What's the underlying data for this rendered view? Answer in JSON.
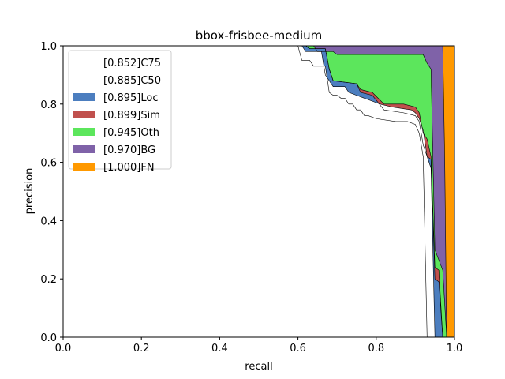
{
  "chart_data": {
    "type": "area",
    "title": "bbox-frisbee-medium",
    "xlabel": "recall",
    "ylabel": "precision",
    "xlim": [
      0.0,
      1.0
    ],
    "ylim": [
      0.0,
      1.0
    ],
    "xticks": [
      "0.0",
      "0.2",
      "0.4",
      "0.6",
      "0.8",
      "1.0"
    ],
    "yticks": [
      "0.0",
      "0.2",
      "0.4",
      "0.6",
      "0.8",
      "1.0"
    ],
    "grid": false,
    "legend_position": "top-left",
    "series": [
      {
        "name": "[0.852]C75",
        "color": "#ffffff",
        "points": [
          [
            0.0,
            1.0
          ],
          [
            0.6,
            1.0
          ],
          [
            0.61,
            0.95
          ],
          [
            0.63,
            0.95
          ],
          [
            0.64,
            0.93
          ],
          [
            0.67,
            0.93
          ],
          [
            0.68,
            0.84
          ],
          [
            0.69,
            0.83
          ],
          [
            0.7,
            0.83
          ],
          [
            0.71,
            0.82
          ],
          [
            0.72,
            0.82
          ],
          [
            0.73,
            0.8
          ],
          [
            0.74,
            0.8
          ],
          [
            0.75,
            0.78
          ],
          [
            0.76,
            0.78
          ],
          [
            0.77,
            0.76
          ],
          [
            0.78,
            0.76
          ],
          [
            0.8,
            0.75
          ],
          [
            0.85,
            0.74
          ],
          [
            0.88,
            0.74
          ],
          [
            0.9,
            0.73
          ],
          [
            0.91,
            0.7
          ],
          [
            0.92,
            0.62
          ],
          [
            0.93,
            0.0
          ]
        ]
      },
      {
        "name": "[0.885]C50",
        "color": "#ffffff",
        "points": [
          [
            0.0,
            1.0
          ],
          [
            0.61,
            1.0
          ],
          [
            0.62,
            0.98
          ],
          [
            0.66,
            0.98
          ],
          [
            0.67,
            0.9
          ],
          [
            0.69,
            0.86
          ],
          [
            0.72,
            0.86
          ],
          [
            0.73,
            0.84
          ],
          [
            0.75,
            0.83
          ],
          [
            0.77,
            0.82
          ],
          [
            0.79,
            0.81
          ],
          [
            0.81,
            0.8
          ],
          [
            0.84,
            0.79
          ],
          [
            0.89,
            0.78
          ],
          [
            0.9,
            0.77
          ],
          [
            0.91,
            0.75
          ],
          [
            0.92,
            0.71
          ],
          [
            0.93,
            0.62
          ],
          [
            0.94,
            0.58
          ],
          [
            0.95,
            0.0
          ]
        ]
      },
      {
        "name": "[0.895]Loc",
        "color": "#4c7ebf",
        "points": [
          [
            0.0,
            1.0
          ],
          [
            0.62,
            1.0
          ],
          [
            0.63,
            0.99
          ],
          [
            0.67,
            0.99
          ],
          [
            0.68,
            0.92
          ],
          [
            0.69,
            0.88
          ],
          [
            0.75,
            0.87
          ],
          [
            0.76,
            0.84
          ],
          [
            0.79,
            0.83
          ],
          [
            0.82,
            0.78
          ],
          [
            0.87,
            0.77
          ],
          [
            0.9,
            0.76
          ],
          [
            0.91,
            0.74
          ],
          [
            0.92,
            0.66
          ],
          [
            0.93,
            0.62
          ],
          [
            0.94,
            0.61
          ],
          [
            0.95,
            0.2
          ],
          [
            0.96,
            0.19
          ],
          [
            0.97,
            0.0
          ]
        ]
      },
      {
        "name": "[0.899]Sim",
        "color": "#c0504d",
        "points": [
          [
            0.0,
            1.0
          ],
          [
            0.62,
            1.0
          ],
          [
            0.63,
            0.99
          ],
          [
            0.67,
            0.99
          ],
          [
            0.68,
            0.92
          ],
          [
            0.69,
            0.88
          ],
          [
            0.75,
            0.87
          ],
          [
            0.76,
            0.85
          ],
          [
            0.79,
            0.84
          ],
          [
            0.82,
            0.8
          ],
          [
            0.87,
            0.8
          ],
          [
            0.9,
            0.79
          ],
          [
            0.91,
            0.77
          ],
          [
            0.92,
            0.7
          ],
          [
            0.93,
            0.68
          ],
          [
            0.94,
            0.62
          ],
          [
            0.95,
            0.24
          ],
          [
            0.96,
            0.23
          ],
          [
            0.97,
            0.0
          ]
        ]
      },
      {
        "name": "[0.945]Oth",
        "color": "#5ce65c",
        "points": [
          [
            0.0,
            1.0
          ],
          [
            0.64,
            1.0
          ],
          [
            0.65,
            0.98
          ],
          [
            0.69,
            0.98
          ],
          [
            0.7,
            0.97
          ],
          [
            0.92,
            0.97
          ],
          [
            0.93,
            0.94
          ],
          [
            0.94,
            0.92
          ],
          [
            0.95,
            0.3
          ],
          [
            0.97,
            0.23
          ],
          [
            0.98,
            0.0
          ]
        ]
      },
      {
        "name": "[0.970]BG",
        "color": "#7f62a8",
        "points": [
          [
            0.0,
            1.0
          ],
          [
            0.97,
            1.0
          ],
          [
            0.975,
            0.61
          ],
          [
            0.98,
            0.0
          ]
        ]
      },
      {
        "name": "[1.000]FN",
        "color": "#ff9900",
        "points": [
          [
            0.0,
            1.0
          ],
          [
            1.0,
            1.0
          ],
          [
            1.0,
            0.0
          ]
        ]
      }
    ]
  }
}
